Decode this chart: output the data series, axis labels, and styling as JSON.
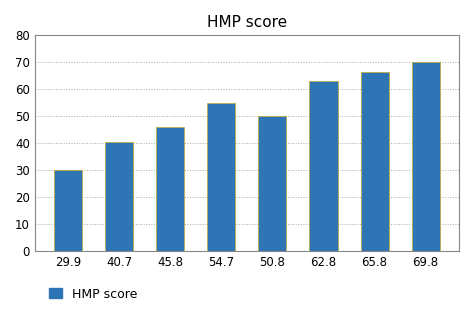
{
  "title": "HMP score",
  "categories": [
    "29.9",
    "40.7",
    "45.8",
    "54.7",
    "50.8",
    "62.8",
    "65.8",
    "69.8"
  ],
  "values": [
    30,
    40.5,
    46,
    55,
    50,
    63,
    66.5,
    70
  ],
  "bar_color": "#2e75b6",
  "bar_edgecolor": "#c8a820",
  "ylim": [
    0,
    80
  ],
  "yticks": [
    0,
    10,
    20,
    30,
    40,
    50,
    60,
    70,
    80
  ],
  "legend_label": "HMP score",
  "background_color": "#ffffff",
  "grid_color": "#aaaaaa",
  "spine_color": "#888888",
  "title_fontsize": 11,
  "tick_fontsize": 8.5,
  "legend_fontsize": 9
}
